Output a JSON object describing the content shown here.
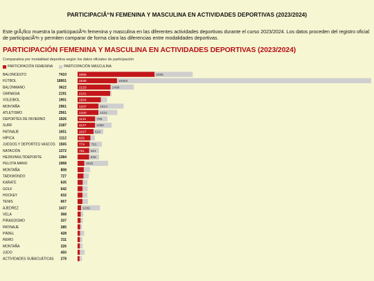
{
  "page": {
    "title": "PARTICIPACIÃ“N FEMENINA Y MASCULINA EN ACTIVIDADES DEPORTIVAS (2023/2024)",
    "intro": "Este grÃ¡fico muestra la participaciÃ³n femenina y masculina en las diferentes actividades deportivas durante el curso 2023/2024. Los datos proceden del registro oficial de participaciÃ³n y permiten comparar de forma clara las diferencias entre modalidades deportivas."
  },
  "colors": {
    "female": "#c2161b",
    "male": "#cfcfcf",
    "background": "#f7f6d3",
    "title": "#b50d12"
  },
  "chart_data": {
    "type": "bar",
    "orientation": "horizontal",
    "stacked": true,
    "title": "PARTICIPACIÓN FEMENINA Y MASCULINA EN ACTIVIDADES DEPORTIVAS (2023/2024)",
    "subtitle": "Comparativa por modalidad deportiva según los datos oficiales de participación",
    "legend_position": "top-left",
    "categories": [
      "BALONCESTO",
      "FÚTBOL",
      "BALONMANO",
      "GIMNASIA",
      "VOLEIBOL",
      "MONTAÑA",
      "ATLETISMO",
      "DEPORTES DE INVIERNO",
      "SURF",
      "PATINAJE",
      "HÍPICA",
      "JUEGOS Y DEPORTES VASCOS",
      "NATACIÓN",
      "HEZIKI/MULTIDEPORTE",
      "PELOTA MANO",
      "MONTAÑA",
      "TAEKWONDO",
      "KARATE",
      "GOLF",
      "HOCKEY",
      "TENIS",
      "AJEDREZ",
      "VELA",
      "PIRAGÜISMO",
      "PATINAJE",
      "PÁDEL",
      "REMO",
      "MONTAÑA",
      "JUDO",
      "ACTIVIDADES SUBACUÁTICAS"
    ],
    "totals": [
      7410,
      18901,
      3622,
      2191,
      1901,
      2961,
      2561,
      1926,
      2187,
      1651,
      1112,
      1565,
      1372,
      1384,
      1968,
      808,
      727,
      635,
      642,
      632,
      667,
      1437,
      368,
      337,
      285,
      428,
      311,
      326,
      450,
      278
    ],
    "series": [
      {
        "name": "PARTICIPACIÓN FEMENINA",
        "values": [
          4955,
          2538,
          2123,
          2101,
          1504,
          1347,
          1340,
          1131,
          1127,
          1027,
          825,
          774,
          751,
          746,
          436,
          402,
          380,
          331,
          323,
          318,
          311,
          228,
          205,
          196,
          174,
          160,
          153,
          150,
          148,
          130
        ],
        "labels": [
          "4955",
          "2538",
          "2123",
          "2101",
          "1504",
          "1347",
          "1340",
          "1131",
          "1127",
          "1027",
          "825",
          "774",
          "751",
          "",
          "",
          "",
          "",
          "",
          "",
          "",
          "",
          "",
          "",
          "",
          "",
          "",
          "",
          "",
          "",
          ""
        ]
      },
      {
        "name": "PARTICIPACIÓN MASCULINA",
        "values": [
          2455,
          16363,
          1499,
          90,
          397,
          1614,
          1221,
          795,
          1060,
          624,
          287,
          791,
          621,
          638,
          1532,
          406,
          347,
          304,
          319,
          314,
          356,
          1209,
          163,
          141,
          111,
          268,
          158,
          176,
          302,
          148
        ],
        "labels": [
          "2455",
          "16363",
          "1499",
          "",
          "",
          "1614",
          "1221",
          "795",
          "1060",
          "624",
          "",
          "791",
          "621",
          "638",
          "1532",
          "",
          "",
          "",
          "",
          "",
          "",
          "1209",
          "",
          "",
          "",
          "",
          "",
          "",
          "",
          ""
        ]
      }
    ]
  }
}
